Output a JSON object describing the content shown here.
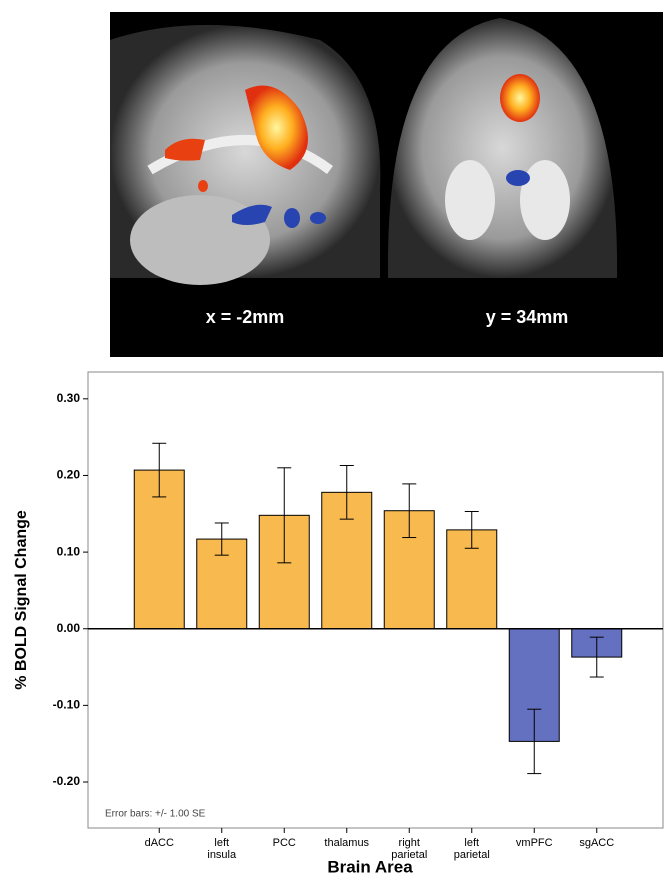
{
  "image_labels": [
    "x = -2mm",
    "y = 34mm"
  ],
  "chart_data": {
    "type": "bar",
    "categories": [
      "dACC",
      "left\ninsula",
      "PCC",
      "thalamus",
      "right\nparietal",
      "left\nparietal",
      "vmPFC",
      "sgACC"
    ],
    "values": [
      0.207,
      0.117,
      0.148,
      0.178,
      0.154,
      0.129,
      -0.147,
      -0.037
    ],
    "error": [
      0.035,
      0.021,
      0.062,
      0.035,
      0.035,
      0.024,
      0.042,
      0.026
    ],
    "colors": [
      "#f8b94f",
      "#f8b94f",
      "#f8b94f",
      "#f8b94f",
      "#f8b94f",
      "#f8b94f",
      "#6470c0",
      "#6470c0"
    ],
    "y_label": "% BOLD Signal Change",
    "x_label": "Brain Area",
    "annotation": "Error bars: +/- 1.00 SE",
    "ylim": [
      -0.26,
      0.335
    ],
    "yticks": [
      {
        "value": -0.2,
        "label": "-0.20"
      },
      {
        "value": -0.1,
        "label": "-0.10"
      },
      {
        "value": 0,
        "label": "0.00"
      },
      {
        "value": 0.1,
        "label": "0.10"
      },
      {
        "value": 0.2,
        "label": "0.20"
      },
      {
        "value": 0.3,
        "label": "0.30"
      }
    ],
    "grid": false
  }
}
